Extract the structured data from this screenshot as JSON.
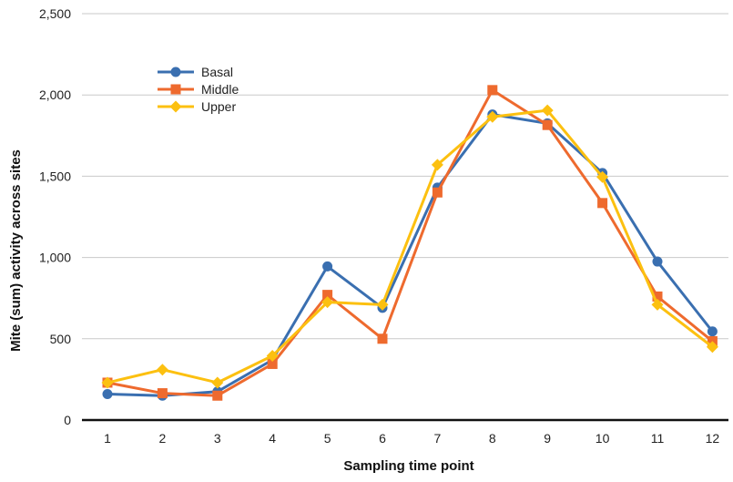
{
  "chart_data": {
    "type": "line",
    "title": "",
    "xlabel": "Sampling time point",
    "ylabel": "Mite (sum) activity across sites",
    "x": [
      "1",
      "2",
      "3",
      "4",
      "5",
      "6",
      "7",
      "8",
      "9",
      "10",
      "11",
      "12"
    ],
    "ylim": [
      0,
      2500
    ],
    "yticks": [
      {
        "value": 0,
        "label": "0"
      },
      {
        "value": 500,
        "label": "500"
      },
      {
        "value": 1000,
        "label": "1,000"
      },
      {
        "value": 1500,
        "label": "1,500"
      },
      {
        "value": 2000,
        "label": "2,000"
      },
      {
        "value": 2500,
        "label": "2,500"
      }
    ],
    "grid": "horizontal",
    "legend_position": "top-left",
    "series": [
      {
        "name": "Basal",
        "color": "#3A6FB0",
        "marker": "circle",
        "values": [
          160,
          150,
          175,
          370,
          945,
          690,
          1430,
          1880,
          1825,
          1520,
          975,
          545
        ]
      },
      {
        "name": "Middle",
        "color": "#EE6A2E",
        "marker": "square",
        "values": [
          230,
          165,
          150,
          345,
          770,
          500,
          1400,
          2030,
          1815,
          1335,
          760,
          485
        ]
      },
      {
        "name": "Upper",
        "color": "#FCC010",
        "marker": "diamond",
        "values": [
          230,
          310,
          230,
          395,
          725,
          710,
          1570,
          1865,
          1905,
          1495,
          710,
          450
        ]
      }
    ]
  }
}
